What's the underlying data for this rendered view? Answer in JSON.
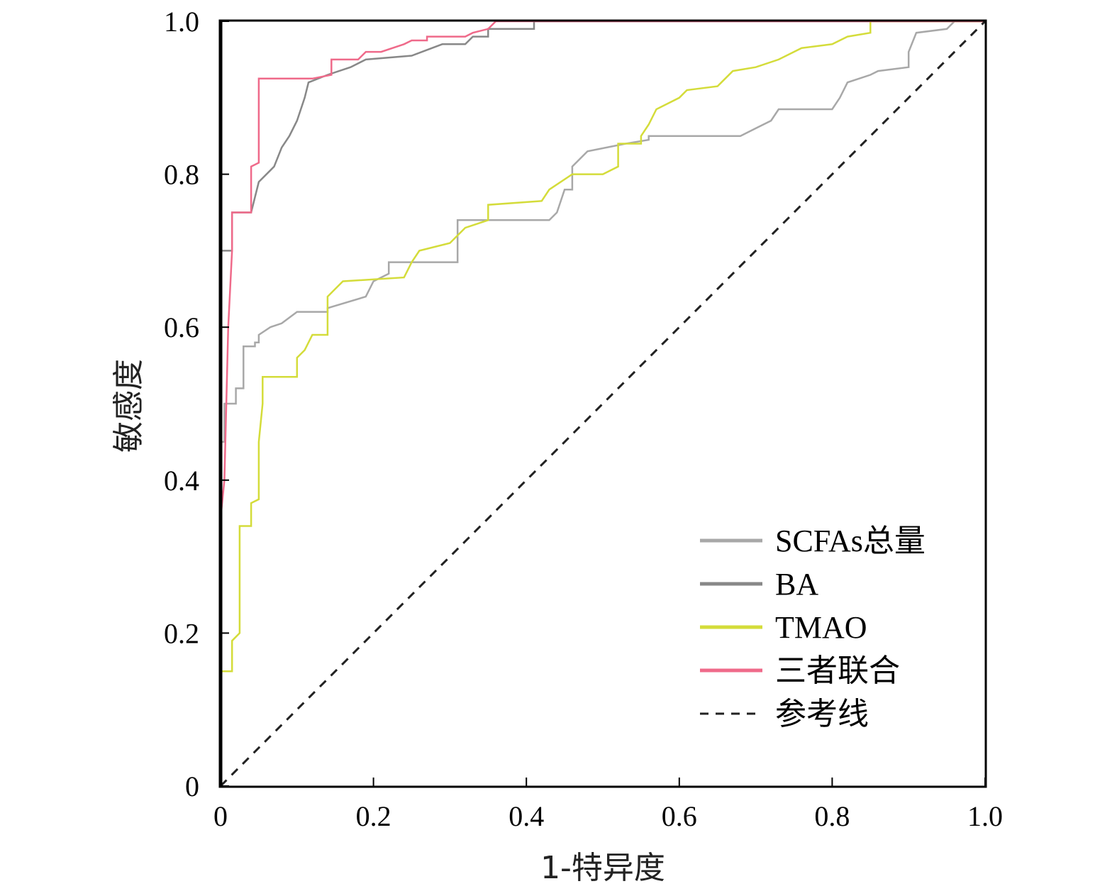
{
  "chart_data": {
    "type": "line",
    "xlabel": "1-特异度",
    "ylabel": "敏感度",
    "xlim": [
      0,
      1
    ],
    "ylim": [
      0,
      1
    ],
    "x_ticks": [
      "0",
      "0.2",
      "0.4",
      "0.6",
      "0.8",
      "1.0"
    ],
    "y_ticks": [
      "0",
      "0.2",
      "0.4",
      "0.6",
      "0.8",
      "1.0"
    ],
    "grid": false,
    "legend_position": "bottom-right",
    "series": [
      {
        "name": "SCFAs总量",
        "color": "#a8a8a8",
        "points": [
          [
            0,
            0
          ],
          [
            0,
            0.45
          ],
          [
            0.005,
            0.45
          ],
          [
            0.005,
            0.5
          ],
          [
            0.02,
            0.5
          ],
          [
            0.02,
            0.52
          ],
          [
            0.03,
            0.52
          ],
          [
            0.03,
            0.575
          ],
          [
            0.045,
            0.575
          ],
          [
            0.045,
            0.58
          ],
          [
            0.05,
            0.58
          ],
          [
            0.05,
            0.59
          ],
          [
            0.065,
            0.6
          ],
          [
            0.08,
            0.605
          ],
          [
            0.1,
            0.62
          ],
          [
            0.14,
            0.62
          ],
          [
            0.14,
            0.625
          ],
          [
            0.19,
            0.64
          ],
          [
            0.2,
            0.66
          ],
          [
            0.22,
            0.67
          ],
          [
            0.22,
            0.685
          ],
          [
            0.255,
            0.685
          ],
          [
            0.31,
            0.685
          ],
          [
            0.31,
            0.74
          ],
          [
            0.43,
            0.74
          ],
          [
            0.44,
            0.75
          ],
          [
            0.45,
            0.78
          ],
          [
            0.46,
            0.78
          ],
          [
            0.46,
            0.81
          ],
          [
            0.48,
            0.83
          ],
          [
            0.53,
            0.84
          ],
          [
            0.56,
            0.845
          ],
          [
            0.56,
            0.85
          ],
          [
            0.6,
            0.85
          ],
          [
            0.68,
            0.85
          ],
          [
            0.7,
            0.86
          ],
          [
            0.72,
            0.87
          ],
          [
            0.73,
            0.885
          ],
          [
            0.8,
            0.885
          ],
          [
            0.81,
            0.9
          ],
          [
            0.82,
            0.92
          ],
          [
            0.85,
            0.93
          ],
          [
            0.86,
            0.935
          ],
          [
            0.9,
            0.94
          ],
          [
            0.9,
            0.96
          ],
          [
            0.91,
            0.985
          ],
          [
            0.95,
            0.99
          ],
          [
            0.96,
            1.0
          ],
          [
            1.0,
            1.0
          ]
        ]
      },
      {
        "name": "BA",
        "color": "#888888",
        "points": [
          [
            0,
            0
          ],
          [
            0,
            0.7
          ],
          [
            0.015,
            0.7
          ],
          [
            0.015,
            0.75
          ],
          [
            0.04,
            0.75
          ],
          [
            0.045,
            0.77
          ],
          [
            0.05,
            0.79
          ],
          [
            0.07,
            0.81
          ],
          [
            0.08,
            0.835
          ],
          [
            0.09,
            0.85
          ],
          [
            0.1,
            0.87
          ],
          [
            0.11,
            0.9
          ],
          [
            0.115,
            0.92
          ],
          [
            0.14,
            0.93
          ],
          [
            0.17,
            0.94
          ],
          [
            0.19,
            0.95
          ],
          [
            0.25,
            0.955
          ],
          [
            0.29,
            0.97
          ],
          [
            0.32,
            0.97
          ],
          [
            0.33,
            0.98
          ],
          [
            0.35,
            0.98
          ],
          [
            0.35,
            0.99
          ],
          [
            0.41,
            0.99
          ],
          [
            0.41,
            1.0
          ],
          [
            1.0,
            1.0
          ]
        ]
      },
      {
        "name": "TMAO",
        "color": "#d4dc3a",
        "points": [
          [
            0,
            0
          ],
          [
            0,
            0.15
          ],
          [
            0.015,
            0.15
          ],
          [
            0.015,
            0.19
          ],
          [
            0.025,
            0.2
          ],
          [
            0.025,
            0.34
          ],
          [
            0.04,
            0.34
          ],
          [
            0.04,
            0.37
          ],
          [
            0.05,
            0.375
          ],
          [
            0.05,
            0.45
          ],
          [
            0.055,
            0.5
          ],
          [
            0.055,
            0.535
          ],
          [
            0.1,
            0.535
          ],
          [
            0.1,
            0.56
          ],
          [
            0.11,
            0.57
          ],
          [
            0.12,
            0.59
          ],
          [
            0.14,
            0.59
          ],
          [
            0.14,
            0.64
          ],
          [
            0.15,
            0.65
          ],
          [
            0.16,
            0.66
          ],
          [
            0.24,
            0.665
          ],
          [
            0.25,
            0.685
          ],
          [
            0.26,
            0.7
          ],
          [
            0.3,
            0.71
          ],
          [
            0.32,
            0.73
          ],
          [
            0.35,
            0.74
          ],
          [
            0.35,
            0.76
          ],
          [
            0.42,
            0.765
          ],
          [
            0.43,
            0.78
          ],
          [
            0.46,
            0.8
          ],
          [
            0.5,
            0.8
          ],
          [
            0.52,
            0.81
          ],
          [
            0.52,
            0.84
          ],
          [
            0.55,
            0.84
          ],
          [
            0.55,
            0.85
          ],
          [
            0.56,
            0.865
          ],
          [
            0.57,
            0.885
          ],
          [
            0.6,
            0.9
          ],
          [
            0.61,
            0.91
          ],
          [
            0.65,
            0.915
          ],
          [
            0.67,
            0.935
          ],
          [
            0.7,
            0.94
          ],
          [
            0.73,
            0.95
          ],
          [
            0.76,
            0.965
          ],
          [
            0.8,
            0.97
          ],
          [
            0.82,
            0.98
          ],
          [
            0.85,
            0.985
          ],
          [
            0.85,
            1.0
          ],
          [
            1.0,
            1.0
          ]
        ]
      },
      {
        "name": "三者联合",
        "color": "#ef6a8a",
        "points": [
          [
            0,
            0
          ],
          [
            0,
            0.35
          ],
          [
            0.005,
            0.4
          ],
          [
            0.01,
            0.6
          ],
          [
            0.015,
            0.7
          ],
          [
            0.015,
            0.75
          ],
          [
            0.04,
            0.75
          ],
          [
            0.04,
            0.81
          ],
          [
            0.05,
            0.815
          ],
          [
            0.05,
            0.925
          ],
          [
            0.12,
            0.925
          ],
          [
            0.145,
            0.93
          ],
          [
            0.145,
            0.95
          ],
          [
            0.18,
            0.95
          ],
          [
            0.19,
            0.96
          ],
          [
            0.21,
            0.96
          ],
          [
            0.24,
            0.97
          ],
          [
            0.25,
            0.975
          ],
          [
            0.27,
            0.975
          ],
          [
            0.27,
            0.98
          ],
          [
            0.32,
            0.98
          ],
          [
            0.33,
            0.985
          ],
          [
            0.35,
            0.99
          ],
          [
            0.36,
            1.0
          ],
          [
            1.0,
            1.0
          ]
        ]
      },
      {
        "name": "参考线",
        "color": "#222222",
        "dashed": true,
        "points": [
          [
            0,
            0
          ],
          [
            1,
            1
          ]
        ]
      }
    ]
  }
}
